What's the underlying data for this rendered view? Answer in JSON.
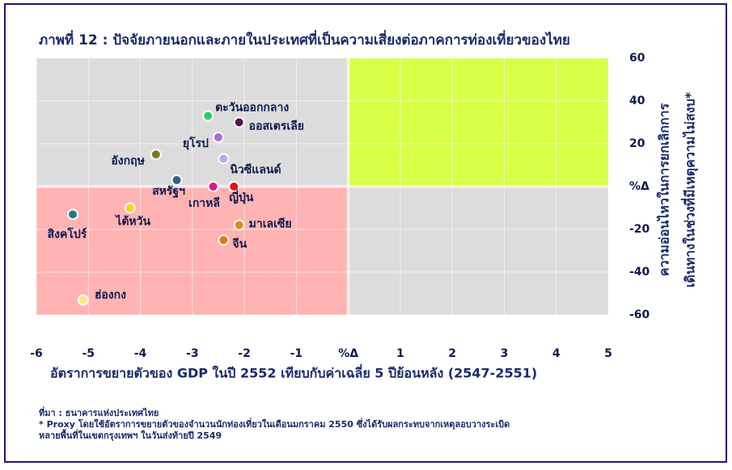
{
  "chart_data": {
    "type": "scatter",
    "title": "ภาพที่ 12 : ปัจจัยภายนอกและภายในประเทศที่เป็นความเสี่ยงต่อภาคการท่องเที่ยวของไทย",
    "x_label": "อัตราการขยายตัวของ GDP ในปี 2552 เทียบกับค่าเฉลี่ย 5 ปีย้อนหลัง (2547-2551)",
    "y_label": [
      "ความอ่อนไหวในการยกเลิกการ",
      "เดินทางในช่วงที่มีเหตุความไม่สงบ*"
    ],
    "notes": [
      "ที่มา : ธนาคารแห่งประเทศไทย",
      "* Proxy โดยใช้อัตราการขยายตัวของจำนวนนักท่องเที่ยวในเดือนมกราคม 2550 ซึ่งได้รับผลกระทบจากเหตุลอบวางระเบิด",
      "หลายพื้นที่ในเขตกรุงเทพฯ ในวันส่งท้ายปี 2549"
    ],
    "xlim": [
      -6,
      5
    ],
    "xticks": [
      -6,
      -5,
      -4,
      -3,
      -2,
      -1,
      {
        "value": 0,
        "label": "%Δ"
      },
      1,
      2,
      3,
      4,
      5
    ],
    "ylim": [
      -60,
      60
    ],
    "yticks": [
      -60,
      -40,
      -20,
      {
        "value": 0,
        "label": "%Δ"
      },
      20,
      40,
      60
    ],
    "grid": true,
    "quadrant_colors": {
      "top_left": "#dcdcdc",
      "top_right": "#d9ff47",
      "bottom_left": "#ffb3b3",
      "bottom_right": "#dcdcdc"
    },
    "series": [
      {
        "name": "ตะวันออกกลาง",
        "color": "#2ecc71",
        "x": [
          -2.7
        ],
        "values": [
          33
        ]
      },
      {
        "name": "ออสเตรเลีย",
        "color": "#5b0f4f",
        "x": [
          -2.1
        ],
        "values": [
          30
        ]
      },
      {
        "name": "ยุโรป",
        "color": "#a66bde",
        "x": [
          -2.5
        ],
        "values": [
          23
        ]
      },
      {
        "name": "อังกฤษ",
        "color": "#7a7a1e",
        "x": [
          -3.7
        ],
        "values": [
          15
        ]
      },
      {
        "name": "นิวซีแลนด์",
        "color": "#c9a3f0",
        "x": [
          -2.4
        ],
        "values": [
          13
        ]
      },
      {
        "name": "สหรัฐฯ",
        "color": "#2f5f8f",
        "x": [
          -3.3
        ],
        "values": [
          3
        ]
      },
      {
        "name": "เกาหลี",
        "color": "#e0188a",
        "x": [
          -2.6
        ],
        "values": [
          0
        ]
      },
      {
        "name": "ญี่ปุ่น",
        "color": "#e81515",
        "x": [
          -2.2
        ],
        "values": [
          0
        ]
      },
      {
        "name": "ไต้หวัน",
        "color": "#ffd21f",
        "x": [
          -4.2
        ],
        "values": [
          -10
        ]
      },
      {
        "name": "สิงคโปร์",
        "color": "#1f7f7f",
        "x": [
          -5.3
        ],
        "values": [
          -13
        ]
      },
      {
        "name": "มาเลเซีย",
        "color": "#e8891c",
        "x": [
          -2.1
        ],
        "values": [
          -18
        ]
      },
      {
        "name": "จีน",
        "color": "#f07010",
        "x": [
          -2.4
        ],
        "values": [
          -25
        ]
      },
      {
        "name": "ฮ่องกง",
        "color": "#ffe680",
        "x": [
          -5.1
        ],
        "values": [
          -53
        ]
      }
    ]
  }
}
